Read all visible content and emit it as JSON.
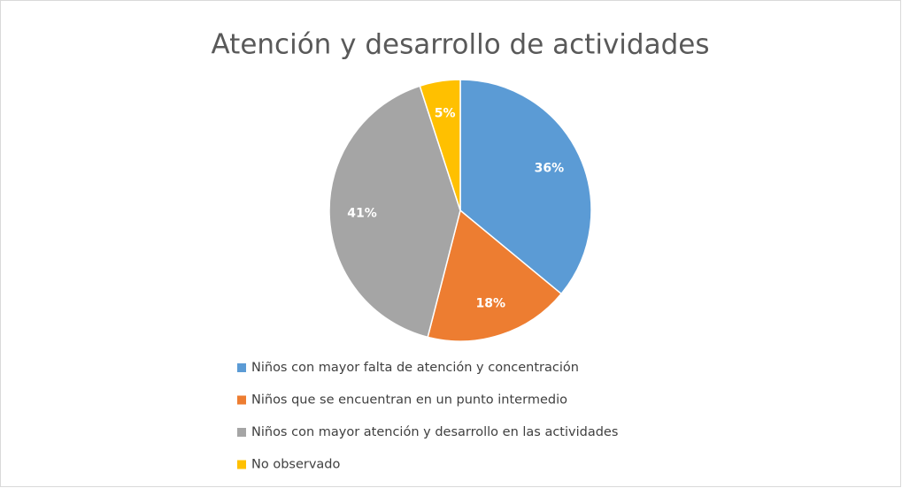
{
  "chart_data": {
    "type": "pie",
    "title": "Atención y desarrollo de actividades",
    "categories": [
      "Niños con mayor falta de atención y concentración",
      "Niños que se encuentran en un punto intermedio",
      "Niños con mayor atención y desarrollo en las actividades",
      "No observado"
    ],
    "values": [
      36,
      18,
      41,
      5
    ],
    "value_labels": [
      "36%",
      "18%",
      "41%",
      "5%"
    ],
    "colors": [
      "#5b9bd5",
      "#ed7d31",
      "#a5a5a5",
      "#ffc000"
    ],
    "legend": "bottom"
  }
}
